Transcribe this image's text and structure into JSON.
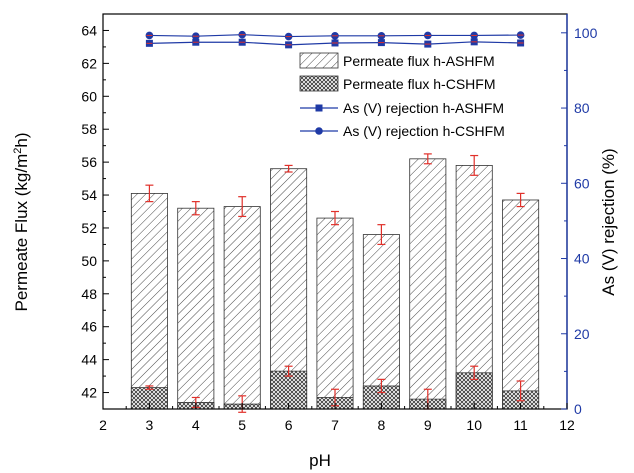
{
  "chart_data": {
    "type": "bar",
    "x": [
      3,
      4,
      5,
      6,
      7,
      8,
      9,
      10,
      11
    ],
    "xlabel": "pH",
    "ylabel_left": "Permeate Flux (kg/m",
    "ylabel_left_sup": "2",
    "ylabel_left_tail": "h)",
    "ylabel_right": "As (V) rejection (%)",
    "xlim": [
      2,
      12
    ],
    "ylim_left": [
      41,
      65
    ],
    "ylim_right": [
      0,
      105
    ],
    "x_ticks": [
      "2",
      "3",
      "4",
      "5",
      "6",
      "7",
      "8",
      "9",
      "10",
      "11",
      "12"
    ],
    "y_left_ticks": [
      "42",
      "44",
      "46",
      "48",
      "50",
      "52",
      "54",
      "56",
      "58",
      "60",
      "62",
      "64"
    ],
    "y_right_ticks": [
      "0",
      "20",
      "40",
      "60",
      "80",
      "100"
    ],
    "bar_series": [
      {
        "name": "Permeate flux h-ASHFM",
        "values": [
          54.1,
          53.2,
          53.3,
          55.6,
          52.6,
          51.6,
          56.2,
          55.8,
          53.7
        ],
        "errors": [
          0.5,
          0.4,
          0.6,
          0.2,
          0.4,
          0.6,
          0.3,
          0.6,
          0.4
        ]
      },
      {
        "name": "Permeate flux h-CSHFM",
        "values": [
          42.3,
          41.4,
          41.3,
          43.3,
          41.7,
          42.4,
          41.6,
          43.2,
          42.1
        ],
        "errors": [
          0.1,
          0.3,
          0.5,
          0.3,
          0.5,
          0.4,
          0.6,
          0.4,
          0.6
        ]
      }
    ],
    "line_series": [
      {
        "name": "As (V) rejection h-ASHFM",
        "values": [
          97.2,
          97.5,
          97.5,
          96.8,
          97.3,
          97.4,
          97.0,
          97.6,
          97.3
        ]
      },
      {
        "name": "As (V) rejection h-CSHFM",
        "values": [
          99.3,
          99.1,
          99.5,
          99.0,
          99.2,
          99.2,
          99.3,
          99.3,
          99.4
        ]
      }
    ],
    "legend_position": "top-right",
    "colors": {
      "axis_left": "#000000",
      "axis_right": "#1f3aa6",
      "line": "#1f3aa6",
      "error": "#e0302a",
      "bar_stroke": "#333333"
    }
  }
}
